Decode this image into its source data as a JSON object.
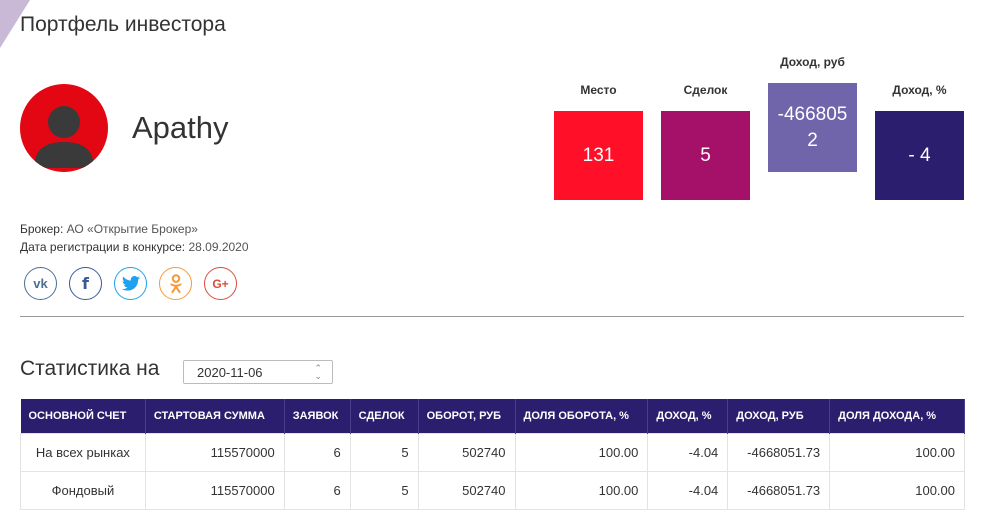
{
  "page": {
    "title": "Портфель инвестора"
  },
  "profile": {
    "username": "Apathy",
    "broker_label": "Брокер:",
    "broker_value": "АО «Открытие Брокер»",
    "reg_label": "Дата регистрации в конкурсе:",
    "reg_value": "28.09.2020"
  },
  "stats": [
    {
      "label": "Место",
      "value": "131",
      "color": "#ff1028"
    },
    {
      "label": "Сделок",
      "value": "5",
      "color": "#a51168"
    },
    {
      "label": "Доход, руб",
      "value": "-4668052",
      "color": "#7064ab"
    },
    {
      "label": "Доход, %",
      "value": "- 4",
      "color": "#2b1e6e"
    }
  ],
  "social": [
    {
      "name": "vk-icon",
      "glyph": "vk"
    },
    {
      "name": "facebook-icon",
      "glyph": "f"
    },
    {
      "name": "twitter-icon",
      "glyph": "twitter-bird"
    },
    {
      "name": "odnoklassniki-icon",
      "glyph": "ok-person"
    },
    {
      "name": "google-plus-icon",
      "glyph": "G+"
    }
  ],
  "statistics": {
    "title": "Статистика на",
    "date": "2020-11-06",
    "columns": [
      "ОСНОВНОЙ СЧЕТ",
      "СТАРТОВАЯ СУММА",
      "ЗАЯВОК",
      "СДЕЛОК",
      "ОБОРОТ, РУБ",
      "ДОЛЯ ОБОРОТА, %",
      "ДОХОД, %",
      "ДОХОД, РУБ",
      "ДОЛЯ ДОХОДА, %"
    ],
    "rows": [
      [
        "На всех рынках",
        "115570000",
        "6",
        "5",
        "502740",
        "100.00",
        "-4.04",
        "-4668051.73",
        "100.00"
      ],
      [
        "Фондовый",
        "115570000",
        "6",
        "5",
        "502740",
        "100.00",
        "-4.04",
        "-4668051.73",
        "100.00"
      ]
    ]
  },
  "colors": {
    "header_bg": "#2b1e6e",
    "avatar_bg": "#e30613"
  }
}
